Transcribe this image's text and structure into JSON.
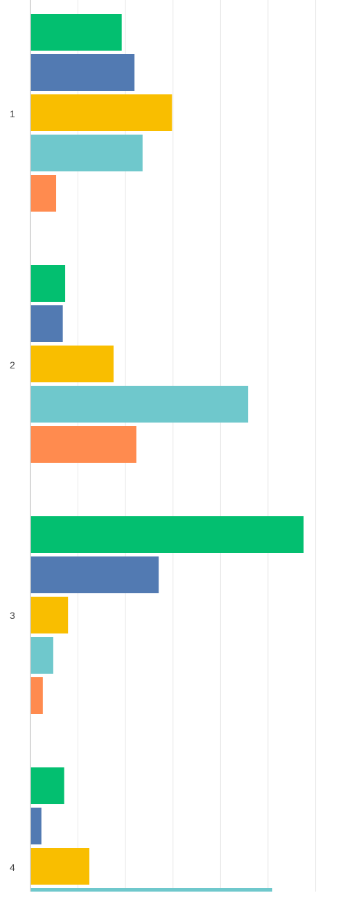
{
  "chart_data": {
    "type": "bar",
    "orientation": "horizontal",
    "title": "",
    "xlabel": "",
    "ylabel": "",
    "categories": [
      "1",
      "2",
      "3",
      "4"
    ],
    "xlim": [
      0,
      6.2
    ],
    "grid": true,
    "legend": "none",
    "series": [
      {
        "color": "#03bf70",
        "values": [
          1.92,
          0.73,
          5.75,
          0.71
        ]
      },
      {
        "color": "#527ab2",
        "values": [
          2.19,
          0.68,
          2.7,
          0.23
        ]
      },
      {
        "color": "#f9be00",
        "values": [
          2.98,
          1.75,
          0.79,
          1.24
        ]
      },
      {
        "color": "#6fc8cc",
        "values": [
          2.36,
          4.58,
          0.48,
          5.09
        ]
      },
      {
        "color": "#ff8b4f",
        "values": [
          0.54,
          2.23,
          0.26,
          null
        ]
      }
    ]
  }
}
